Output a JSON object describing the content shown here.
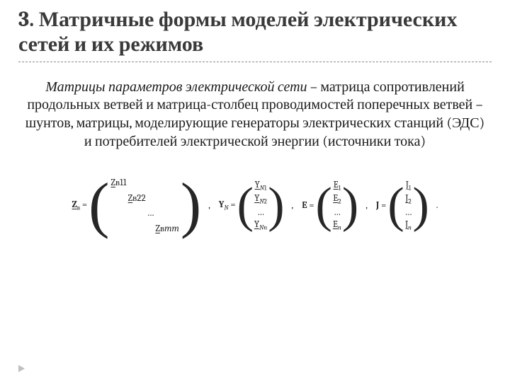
{
  "title": "3. Матричные формы моделей электрических сетей и их режимов",
  "para": {
    "lead_italic": "Матрицы параметров электрической сети",
    "rest": " – матрица сопротивлений продольных ветвей и матрица-столбец проводимостей поперечных ветвей – шунтов, матрицы, моделирующие генераторы электрических станций (ЭДС) и потребителей электрической энергии (источники тока)"
  },
  "eq": {
    "Z": {
      "lhs_html": "<span class='sym under'>Z</span><sub>в</sub> =",
      "paren_size": 88,
      "cells": [
        "<span class='under'>Z</span><span class='sub'>в11</span>",
        "<span class='under'>Z</span><span class='sub'>в22</span>",
        "…",
        "<span class='under'>Z</span><span class='sub'>в<i>mm</i></span>"
      ]
    },
    "Y": {
      "lhs_html": "<span class='sym'>Y</span><sub><i>N</i></sub> =",
      "paren_size": 70,
      "cells": [
        "<span class='under'>Y</span><span class='sub'><i>N</i>1</span>",
        "<span class='under'>Y</span><span class='sub'><i>N</i>2</span>",
        "…",
        "<span class='under'>Y</span><span class='sub'><i>Nn</i></span>"
      ]
    },
    "E": {
      "lhs_html": "<span class='sym'>E</span> =",
      "paren_size": 70,
      "cells": [
        "<span class='under'>E</span><span class='sub'>1</span>",
        "<span class='under'>E</span><span class='sub'>2</span>",
        "…",
        "<span class='under'>E</span><span class='sub'><i>n</i></span>"
      ]
    },
    "J": {
      "lhs_html": "<span class='sym'>J</span> =",
      "paren_size": 70,
      "cells": [
        "<span class='under'>J</span><span class='sub'>1</span>",
        "<span class='under'>J</span><span class='sub'>2</span>",
        "…",
        "<span class='under'>J</span><span class='sub'><i>n</i></span>"
      ]
    },
    "comma": ",",
    "period": "."
  },
  "colors": {
    "text": "#262626",
    "rule": "#8a8a8a",
    "marker": "#bfbfbf",
    "bg": "#ffffff"
  },
  "typography": {
    "title_pt": 30,
    "body_pt": 20,
    "eq_pt": 13,
    "family": "Cambria / Georgia / serif"
  }
}
